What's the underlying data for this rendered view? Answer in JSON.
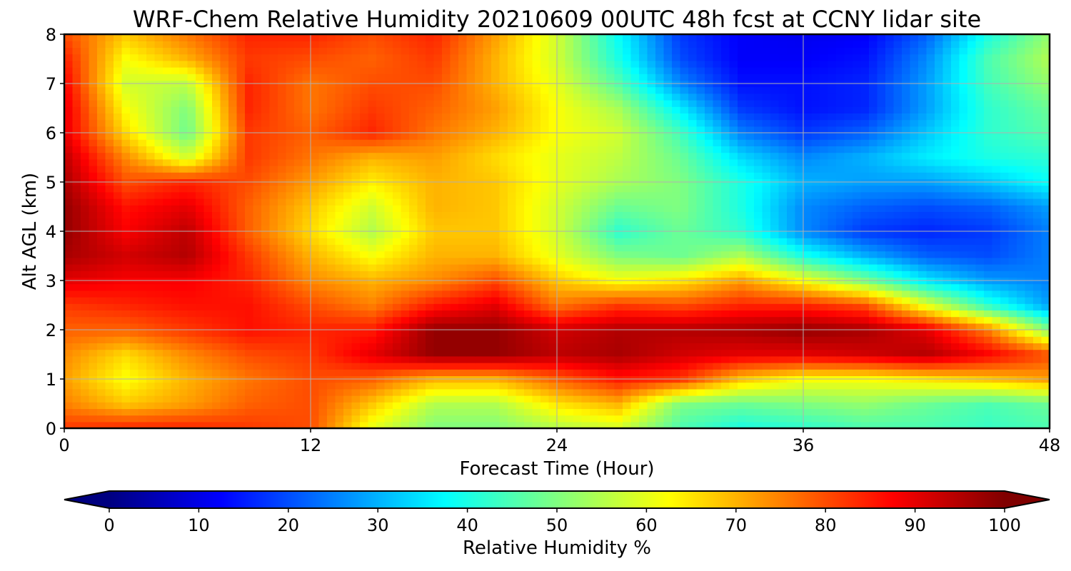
{
  "chart_data": {
    "type": "heatmap",
    "title": "WRF-Chem Relative Humidity 20210609 00UTC 48h fcst at CCNY lidar site",
    "xlabel": "Forecast Time (Hour)",
    "ylabel": "Alt AGL (km)",
    "xlim": [
      0,
      48
    ],
    "ylim": [
      0,
      8
    ],
    "xticks": [
      0,
      12,
      24,
      36,
      48
    ],
    "yticks": [
      0,
      1,
      2,
      3,
      4,
      5,
      6,
      7,
      8
    ],
    "grid": true,
    "colormap": "jet",
    "colorbar": {
      "label": "Relative Humidity %",
      "ticks": [
        0,
        10,
        20,
        30,
        40,
        50,
        60,
        70,
        80,
        90,
        100
      ],
      "range": [
        0,
        100
      ],
      "extend": "both",
      "orientation": "horizontal",
      "position": "bottom"
    },
    "x": [
      0,
      3,
      6,
      9,
      12,
      15,
      18,
      21,
      24,
      27,
      30,
      33,
      36,
      39,
      42,
      45,
      48
    ],
    "y": [
      0,
      0.5,
      1,
      1.5,
      2,
      2.5,
      3,
      3.5,
      4,
      4.5,
      5,
      5.5,
      6,
      6.5,
      7,
      7.5,
      8
    ],
    "z": [
      [
        82,
        84,
        84,
        82,
        80,
        60,
        50,
        50,
        55,
        58,
        45,
        40,
        42,
        45,
        45,
        43,
        45
      ],
      [
        75,
        68,
        72,
        78,
        80,
        68,
        55,
        55,
        65,
        70,
        50,
        48,
        50,
        52,
        48,
        45,
        48
      ],
      [
        72,
        62,
        70,
        76,
        80,
        78,
        70,
        70,
        78,
        85,
        82,
        68,
        62,
        62,
        65,
        68,
        72
      ],
      [
        74,
        66,
        74,
        80,
        82,
        90,
        98,
        98,
        94,
        96,
        92,
        90,
        90,
        92,
        95,
        88,
        80
      ],
      [
        78,
        78,
        82,
        86,
        84,
        85,
        98,
        98,
        92,
        95,
        95,
        96,
        98,
        96,
        90,
        75,
        50
      ],
      [
        82,
        84,
        86,
        86,
        80,
        75,
        85,
        90,
        76,
        82,
        80,
        84,
        84,
        80,
        60,
        42,
        28
      ],
      [
        90,
        88,
        88,
        84,
        74,
        70,
        74,
        80,
        68,
        62,
        65,
        72,
        62,
        50,
        36,
        28,
        25
      ],
      [
        96,
        92,
        95,
        82,
        70,
        62,
        70,
        70,
        60,
        50,
        48,
        55,
        40,
        30,
        22,
        20,
        25
      ],
      [
        98,
        88,
        94,
        78,
        66,
        55,
        68,
        68,
        58,
        42,
        48,
        42,
        26,
        18,
        16,
        18,
        25
      ],
      [
        98,
        86,
        90,
        78,
        68,
        58,
        70,
        68,
        58,
        48,
        50,
        40,
        26,
        22,
        20,
        22,
        28
      ],
      [
        96,
        80,
        84,
        80,
        72,
        64,
        70,
        68,
        60,
        54,
        50,
        40,
        30,
        28,
        28,
        32,
        38
      ],
      [
        94,
        74,
        58,
        82,
        76,
        70,
        72,
        66,
        60,
        56,
        48,
        34,
        26,
        30,
        36,
        40,
        42
      ],
      [
        90,
        66,
        48,
        82,
        78,
        84,
        76,
        70,
        62,
        58,
        44,
        25,
        18,
        22,
        32,
        42,
        46
      ],
      [
        90,
        62,
        50,
        84,
        76,
        82,
        78,
        72,
        62,
        54,
        36,
        18,
        14,
        16,
        28,
        42,
        48
      ],
      [
        88,
        58,
        56,
        84,
        76,
        80,
        80,
        70,
        60,
        46,
        26,
        14,
        14,
        16,
        28,
        44,
        52
      ],
      [
        85,
        62,
        70,
        82,
        80,
        78,
        82,
        70,
        58,
        40,
        20,
        12,
        12,
        14,
        26,
        45,
        55
      ],
      [
        80,
        68,
        76,
        84,
        84,
        80,
        84,
        72,
        58,
        38,
        18,
        12,
        11,
        12,
        22,
        40,
        52
      ]
    ]
  }
}
